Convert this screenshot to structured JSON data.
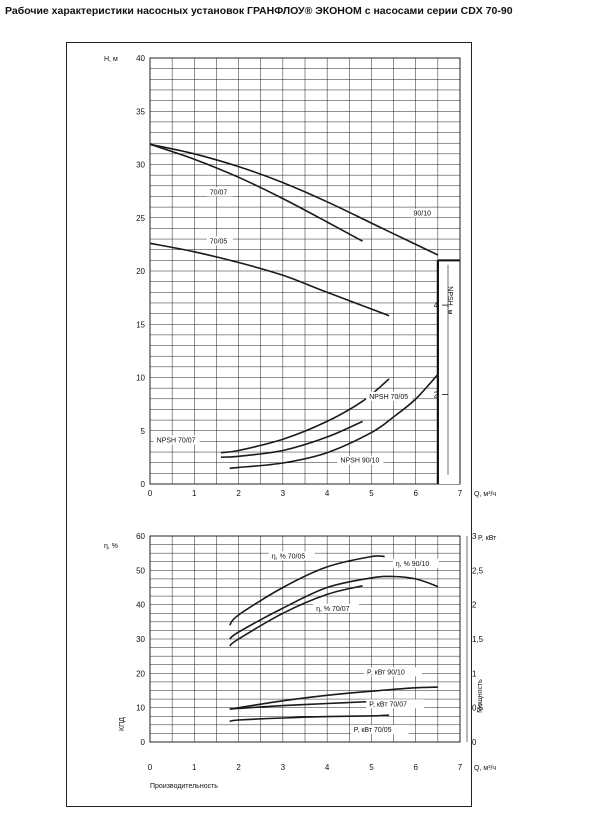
{
  "page_title": "Рабочие характеристики насосных установок ГРАНФЛОУ® ЭКОНОМ с насосами серии CDX 70-90",
  "colors": {
    "curve": "#1a1a1a",
    "grid": "#222222",
    "frame": "#222222"
  },
  "chart_data": [
    {
      "type": "line",
      "title": "",
      "xlabel": "Q, м³/ч",
      "ylabel": "H, м",
      "xlim": [
        0,
        7
      ],
      "ylim": [
        0,
        40
      ],
      "xticks": [
        0,
        1,
        2,
        3,
        4,
        5,
        6,
        7
      ],
      "yticks": [
        0,
        5,
        10,
        15,
        20,
        25,
        30,
        35,
        40
      ],
      "grid": true,
      "series": [
        {
          "name": "90/10",
          "label": "90/10",
          "x": [
            0,
            1,
            2,
            3,
            4,
            5,
            6,
            6.5
          ],
          "y": [
            31.9,
            31.0,
            29.8,
            28.3,
            26.5,
            24.5,
            22.5,
            21.5
          ]
        },
        {
          "name": "70/07",
          "label": "70/07",
          "x": [
            0,
            1,
            2,
            3,
            4,
            4.8
          ],
          "y": [
            31.9,
            30.5,
            28.8,
            26.8,
            24.6,
            22.8
          ]
        },
        {
          "name": "70/05",
          "label": "70/05",
          "x": [
            0,
            1,
            2,
            3,
            4,
            5.4
          ],
          "y": [
            22.6,
            21.8,
            20.8,
            19.6,
            18.0,
            15.8
          ]
        },
        {
          "name": "NPSH 70/05",
          "label": "NPSH 70/05",
          "secondary_y": true,
          "x": [
            1.6,
            2,
            3,
            4,
            4.8,
            5.4
          ],
          "y": [
            0.7,
            0.75,
            1.0,
            1.4,
            1.85,
            2.35
          ]
        },
        {
          "name": "NPSH 70/07",
          "label": "NPSH 70/07",
          "secondary_y": true,
          "x": [
            1.6,
            2,
            3,
            4,
            4.8
          ],
          "y": [
            0.6,
            0.62,
            0.75,
            1.05,
            1.4
          ]
        },
        {
          "name": "NPSH 90/10",
          "label": "NPSH 90/10",
          "secondary_y": true,
          "x": [
            1.8,
            2,
            3,
            4,
            5,
            5.5,
            6,
            6.5
          ],
          "y": [
            0.35,
            0.37,
            0.47,
            0.7,
            1.15,
            1.5,
            1.9,
            2.45
          ]
        }
      ],
      "secondary_axis": {
        "label": "NPSH, м",
        "ticks": [
          2,
          4
        ],
        "ylim": [
          0,
          5
        ],
        "x_position": 6.5
      }
    },
    {
      "type": "line",
      "title": "",
      "xlabel": "Q, м³/ч",
      "ylabel": "η, %",
      "ylabel_side": "КПД",
      "xlabel_bottom": "Производительность",
      "xlim": [
        0,
        7
      ],
      "ylim": [
        0,
        60
      ],
      "xticks": [
        0,
        1,
        2,
        3,
        4,
        5,
        6,
        7
      ],
      "yticks": [
        0,
        10,
        20,
        30,
        40,
        50,
        60
      ],
      "grid": true,
      "series": [
        {
          "name": "η, % 70/05",
          "label": "η, % 70/05",
          "x": [
            1.8,
            2,
            3,
            4,
            5,
            5.3
          ],
          "y": [
            34,
            37,
            45,
            51,
            54,
            54
          ]
        },
        {
          "name": "η, % 90/10",
          "label": "η, % 90/10",
          "x": [
            1.8,
            2,
            3,
            4,
            5,
            5.5,
            6,
            6.5
          ],
          "y": [
            30,
            32,
            39,
            45,
            47.8,
            48.2,
            47.5,
            45.3
          ]
        },
        {
          "name": "η, % 70/07",
          "label": "η, % 70/07",
          "x": [
            1.8,
            2,
            3,
            4,
            4.8
          ],
          "y": [
            28,
            30,
            37.5,
            43,
            45.5
          ]
        },
        {
          "name": "P, кВт 90/10",
          "label": "P, кВт  90/10",
          "secondary_y": true,
          "x": [
            1.8,
            2,
            3,
            4,
            5,
            6,
            6.5
          ],
          "y": [
            0.48,
            0.5,
            0.6,
            0.68,
            0.74,
            0.79,
            0.8
          ]
        },
        {
          "name": "P, кВт 70/07",
          "label": "P, кВт  70/07",
          "secondary_y": true,
          "x": [
            1.8,
            2,
            3,
            4,
            5,
            5.4
          ],
          "y": [
            0.48,
            0.49,
            0.53,
            0.56,
            0.59,
            0.6
          ]
        },
        {
          "name": "P, кВт 70/05",
          "label": "P, кВт  70/05",
          "secondary_y": true,
          "x": [
            1.8,
            2,
            3,
            4,
            5,
            5.4
          ],
          "y": [
            0.3,
            0.32,
            0.35,
            0.37,
            0.38,
            0.39
          ]
        }
      ],
      "secondary_axis": {
        "label": "P, кВт",
        "label_side": "Мощность",
        "ticks": [
          0,
          0.5,
          1,
          1.5,
          2,
          2.5,
          3
        ],
        "tick_labels": [
          "0",
          "0,5",
          "1",
          "1,5",
          "2",
          "2,5",
          "3"
        ],
        "ylim": [
          0,
          3
        ]
      }
    }
  ]
}
